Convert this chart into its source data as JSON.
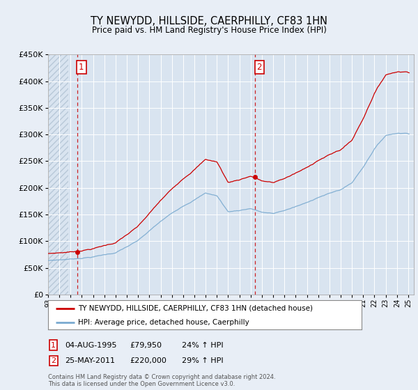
{
  "title": "TY NEWYDD, HILLSIDE, CAERPHILLY, CF83 1HN",
  "subtitle": "Price paid vs. HM Land Registry's House Price Index (HPI)",
  "legend_line1": "TY NEWYDD, HILLSIDE, CAERPHILLY, CF83 1HN (detached house)",
  "legend_line2": "HPI: Average price, detached house, Caerphilly",
  "annotation1_label": "1",
  "annotation1_date": "04-AUG-1995",
  "annotation1_price": "£79,950",
  "annotation1_hpi": "24% ↑ HPI",
  "annotation2_label": "2",
  "annotation2_date": "25-MAY-2011",
  "annotation2_price": "£220,000",
  "annotation2_hpi": "29% ↑ HPI",
  "footnote1": "Contains HM Land Registry data © Crown copyright and database right 2024.",
  "footnote2": "This data is licensed under the Open Government Licence v3.0.",
  "bg_color": "#e8eef6",
  "plot_bg_color": "#d9e4f0",
  "line1_color": "#cc0000",
  "line2_color": "#7aaad0",
  "ylim": [
    0,
    450000
  ],
  "yticks": [
    0,
    50000,
    100000,
    150000,
    200000,
    250000,
    300000,
    350000,
    400000,
    450000
  ],
  "sale1_x": 1995.58,
  "sale1_y": 79950,
  "sale2_x": 2011.39,
  "sale2_y": 220000,
  "xmin": 1993,
  "xmax": 2025.5
}
